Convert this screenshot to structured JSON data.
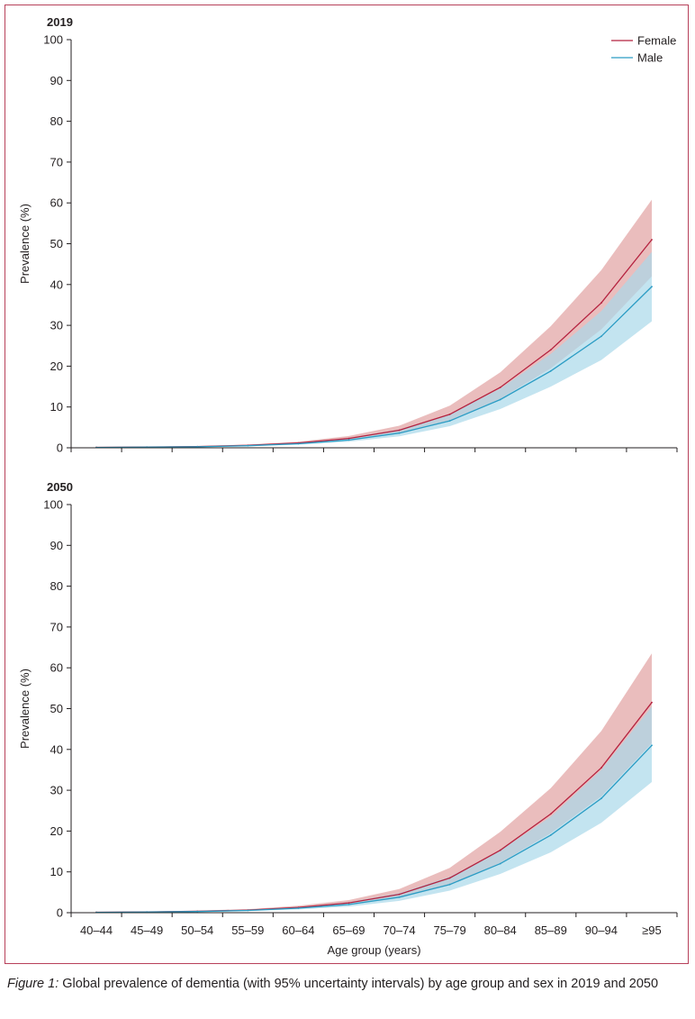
{
  "colors": {
    "female": "#b5223f",
    "female_band": "#e3a7a7",
    "male": "#2b9cc4",
    "male_band": "#a9d8ea",
    "frame": "#b7405a"
  },
  "caption": {
    "label": "Figure 1:",
    "text": " Global prevalence of dementia (with 95% uncertainty intervals) by age group and sex in 2019 and 2050"
  },
  "chart_data": [
    {
      "type": "area",
      "title": "2019",
      "ylabel": "Prevalence (%)",
      "xlabel": "",
      "ylim": [
        0,
        100
      ],
      "yticks": [
        0,
        10,
        20,
        30,
        40,
        50,
        60,
        70,
        80,
        90,
        100
      ],
      "categories": [
        "40–44",
        "45–49",
        "50–54",
        "55–59",
        "60–64",
        "65–69",
        "70–74",
        "75–79",
        "80–84",
        "85–89",
        "90–94",
        "≥95"
      ],
      "show_category_labels": false,
      "legend": "top-right",
      "series": [
        {
          "name": "Female",
          "values": [
            0.1,
            0.2,
            0.3,
            0.6,
            1.2,
            2.3,
            4.3,
            8.2,
            14.8,
            24.0,
            35.5,
            51.0
          ],
          "lower": [
            0.05,
            0.12,
            0.22,
            0.45,
            0.9,
            1.8,
            3.5,
            6.7,
            12.0,
            19.5,
            29.0,
            42.0
          ],
          "upper": [
            0.15,
            0.28,
            0.45,
            0.8,
            1.5,
            2.9,
            5.4,
            10.3,
            18.5,
            29.8,
            43.5,
            60.8
          ]
        },
        {
          "name": "Male",
          "values": [
            0.08,
            0.15,
            0.25,
            0.5,
            1.0,
            1.9,
            3.6,
            6.6,
            11.8,
            18.8,
            27.3,
            39.5
          ],
          "lower": [
            0.04,
            0.1,
            0.18,
            0.35,
            0.75,
            1.5,
            2.8,
            5.3,
            9.5,
            15.0,
            21.5,
            31.0
          ],
          "upper": [
            0.12,
            0.22,
            0.35,
            0.65,
            1.3,
            2.4,
            4.5,
            8.2,
            14.5,
            23.0,
            33.5,
            48.0
          ]
        }
      ]
    },
    {
      "type": "area",
      "title": "2050",
      "ylabel": "Prevalence (%)",
      "xlabel": "Age group (years)",
      "ylim": [
        0,
        100
      ],
      "yticks": [
        0,
        10,
        20,
        30,
        40,
        50,
        60,
        70,
        80,
        90,
        100
      ],
      "categories": [
        "40–44",
        "45–49",
        "50–54",
        "55–59",
        "60–64",
        "65–69",
        "70–74",
        "75–79",
        "80–84",
        "85–89",
        "90–94",
        "≥95"
      ],
      "show_category_labels": true,
      "legend": "",
      "series": [
        {
          "name": "Female",
          "values": [
            0.1,
            0.2,
            0.35,
            0.65,
            1.3,
            2.4,
            4.5,
            8.5,
            15.3,
            24.2,
            35.5,
            51.5
          ],
          "lower": [
            0.05,
            0.12,
            0.25,
            0.5,
            1.0,
            1.9,
            3.6,
            6.8,
            12.2,
            19.5,
            28.5,
            41.5
          ],
          "upper": [
            0.15,
            0.3,
            0.5,
            0.85,
            1.7,
            3.1,
            5.8,
            11.0,
            19.8,
            30.5,
            44.5,
            63.5
          ]
        },
        {
          "name": "Male",
          "values": [
            0.08,
            0.16,
            0.28,
            0.55,
            1.1,
            2.0,
            3.8,
            6.9,
            12.0,
            19.0,
            28.0,
            41.0
          ],
          "lower": [
            0.04,
            0.1,
            0.2,
            0.4,
            0.8,
            1.5,
            2.9,
            5.4,
            9.5,
            14.8,
            22.0,
            32.0
          ],
          "upper": [
            0.12,
            0.23,
            0.38,
            0.7,
            1.4,
            2.6,
            4.8,
            8.8,
            15.2,
            23.5,
            35.0,
            50.5
          ]
        }
      ]
    }
  ]
}
